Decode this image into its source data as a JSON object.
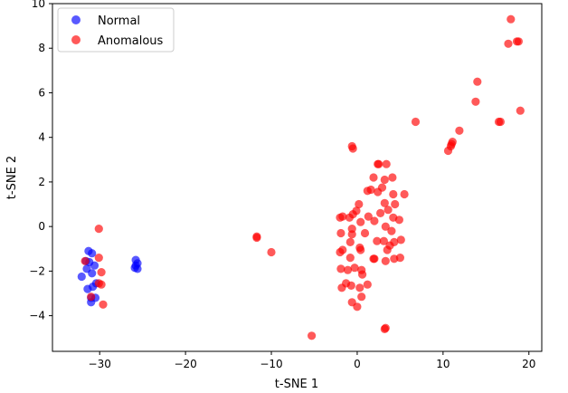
{
  "chart_data": {
    "type": "scatter",
    "title": "",
    "xlabel": "t-SNE 1",
    "ylabel": "t-SNE 2",
    "xlim": [
      -35.5,
      21.5
    ],
    "ylim": [
      -5.6,
      10
    ],
    "xticks": [
      -30,
      -20,
      -10,
      0,
      10,
      20
    ],
    "yticks": [
      -4,
      -2,
      0,
      2,
      4,
      6,
      8,
      10
    ],
    "legend_position": "top-left",
    "grid": false,
    "series": [
      {
        "name": "Normal",
        "color": "#0000ff",
        "points": [
          [
            -31.3,
            -1.1
          ],
          [
            -30.9,
            -1.2
          ],
          [
            -31.2,
            -1.6
          ],
          [
            -30.6,
            -1.75
          ],
          [
            -31.5,
            -1.9
          ],
          [
            -30.9,
            -2.1
          ],
          [
            -32.1,
            -2.25
          ],
          [
            -31.4,
            -2.8
          ],
          [
            -30.8,
            -2.7
          ],
          [
            -30.4,
            -2.55
          ],
          [
            -31.0,
            -3.2
          ],
          [
            -30.5,
            -3.2
          ],
          [
            -31.0,
            -3.4
          ],
          [
            -31.6,
            -1.55
          ],
          [
            -25.8,
            -1.5
          ],
          [
            -25.6,
            -1.65
          ],
          [
            -25.9,
            -1.85
          ],
          [
            -25.6,
            -1.9
          ],
          [
            -25.8,
            -1.75
          ]
        ]
      },
      {
        "name": "Anomalous",
        "color": "#ff0000",
        "points": [
          [
            -30.1,
            -0.1
          ],
          [
            -31.7,
            -1.55
          ],
          [
            -30.1,
            -1.4
          ],
          [
            -29.8,
            -2.05
          ],
          [
            -30.1,
            -2.55
          ],
          [
            -29.8,
            -2.6
          ],
          [
            -31.0,
            -3.15
          ],
          [
            -29.6,
            -3.5
          ],
          [
            -11.7,
            -0.45
          ],
          [
            -11.7,
            -0.5
          ],
          [
            -10.0,
            -1.15
          ],
          [
            -5.3,
            -4.9
          ],
          [
            17.9,
            9.3
          ],
          [
            17.6,
            8.2
          ],
          [
            18.6,
            8.3
          ],
          [
            18.8,
            8.3
          ],
          [
            14.0,
            6.5
          ],
          [
            13.8,
            5.6
          ],
          [
            19.0,
            5.2
          ],
          [
            6.8,
            4.7
          ],
          [
            16.5,
            4.7
          ],
          [
            16.7,
            4.7
          ],
          [
            11.9,
            4.3
          ],
          [
            11.0,
            3.7
          ],
          [
            11.1,
            3.8
          ],
          [
            10.9,
            3.6
          ],
          [
            10.6,
            3.4
          ],
          [
            -0.6,
            3.6
          ],
          [
            -0.5,
            3.5
          ],
          [
            2.5,
            2.8
          ],
          [
            2.4,
            2.8
          ],
          [
            3.4,
            2.8
          ],
          [
            1.9,
            2.2
          ],
          [
            3.2,
            2.1
          ],
          [
            4.1,
            2.2
          ],
          [
            1.2,
            1.6
          ],
          [
            1.6,
            1.65
          ],
          [
            2.4,
            1.55
          ],
          [
            2.9,
            1.75
          ],
          [
            4.2,
            1.45
          ],
          [
            5.5,
            1.45
          ],
          [
            0.2,
            1.0
          ],
          [
            3.2,
            1.05
          ],
          [
            4.4,
            1.0
          ],
          [
            -0.5,
            0.55
          ],
          [
            -1.7,
            0.45
          ],
          [
            -0.9,
            0.4
          ],
          [
            -0.1,
            0.7
          ],
          [
            -2.0,
            0.4
          ],
          [
            1.3,
            0.45
          ],
          [
            2.0,
            0.25
          ],
          [
            2.7,
            0.6
          ],
          [
            3.6,
            0.75
          ],
          [
            4.2,
            0.4
          ],
          [
            4.9,
            0.3
          ],
          [
            -0.6,
            -0.1
          ],
          [
            0.4,
            0.2
          ],
          [
            3.3,
            0.0
          ],
          [
            -1.9,
            -0.3
          ],
          [
            -0.6,
            -0.35
          ],
          [
            0.9,
            -0.3
          ],
          [
            4.0,
            -0.2
          ],
          [
            2.3,
            -0.65
          ],
          [
            3.1,
            -0.65
          ],
          [
            4.3,
            -0.7
          ],
          [
            5.1,
            -0.6
          ],
          [
            3.8,
            -0.85
          ],
          [
            -0.8,
            -0.7
          ],
          [
            -1.7,
            -1.05
          ],
          [
            -2.0,
            -1.15
          ],
          [
            0.4,
            -1.05
          ],
          [
            0.3,
            -0.95
          ],
          [
            3.5,
            -1.05
          ],
          [
            -0.8,
            -1.4
          ],
          [
            1.9,
            -1.45
          ],
          [
            2.0,
            -1.45
          ],
          [
            3.3,
            -1.55
          ],
          [
            4.3,
            -1.45
          ],
          [
            5.0,
            -1.4
          ],
          [
            -1.9,
            -1.9
          ],
          [
            -1.1,
            -1.95
          ],
          [
            -0.3,
            -1.85
          ],
          [
            0.5,
            -1.95
          ],
          [
            0.6,
            -2.15
          ],
          [
            -1.3,
            -2.55
          ],
          [
            -1.8,
            -2.75
          ],
          [
            -0.7,
            -2.65
          ],
          [
            0.3,
            -2.75
          ],
          [
            1.2,
            -2.6
          ],
          [
            0.5,
            -3.15
          ],
          [
            -0.6,
            -3.4
          ],
          [
            0.0,
            -3.6
          ],
          [
            3.3,
            -4.55
          ],
          [
            3.2,
            -4.6
          ]
        ]
      }
    ]
  }
}
